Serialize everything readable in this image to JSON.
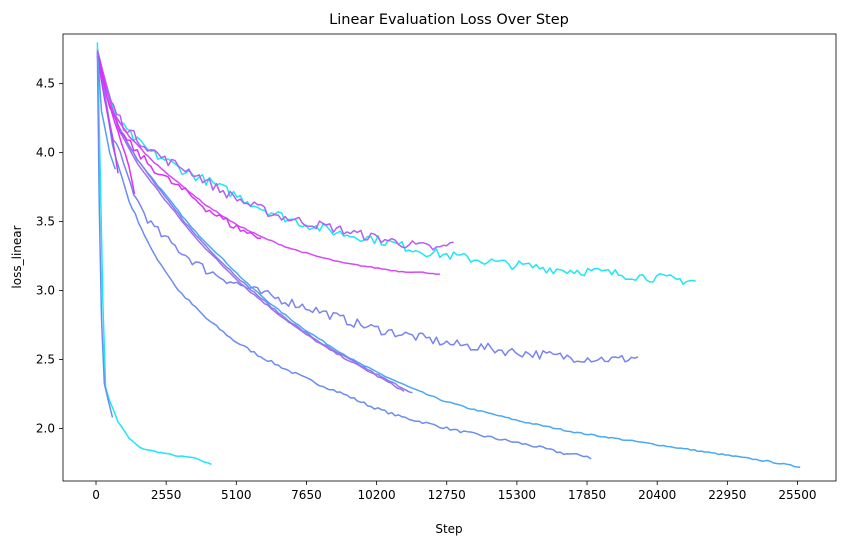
{
  "chart_data": {
    "type": "line",
    "title": "Linear Evaluation Loss Over Step",
    "xlabel": "Step",
    "ylabel": "loss_linear",
    "xlim": [
      -1200,
      26900
    ],
    "ylim": [
      1.62,
      4.86
    ],
    "xticks": [
      0,
      2550,
      5100,
      7650,
      10200,
      12750,
      15300,
      17850,
      20400,
      22950,
      25500
    ],
    "yticks": [
      2.0,
      2.5,
      3.0,
      3.5,
      4.0,
      4.5
    ],
    "grid": false,
    "legend": "none",
    "series": [
      {
        "color": "#1ee6f5",
        "noise": 0.004,
        "points": [
          [
            50,
            4.8
          ],
          [
            150,
            3.9
          ],
          [
            250,
            2.9
          ],
          [
            350,
            2.3
          ],
          [
            500,
            2.2
          ],
          [
            800,
            2.05
          ],
          [
            1200,
            1.93
          ],
          [
            1600,
            1.86
          ],
          [
            2000,
            1.84
          ],
          [
            2500,
            1.82
          ],
          [
            3000,
            1.8
          ],
          [
            3500,
            1.79
          ],
          [
            4200,
            1.74
          ]
        ]
      },
      {
        "color": "#6a8ef0",
        "noise": 0.004,
        "points": [
          [
            50,
            4.72
          ],
          [
            120,
            3.6
          ],
          [
            200,
            2.8
          ],
          [
            300,
            2.33
          ],
          [
            450,
            2.2
          ],
          [
            600,
            2.08
          ]
        ]
      },
      {
        "color": "#6a8ef0",
        "noise": 0.01,
        "points": [
          [
            50,
            4.75
          ],
          [
            600,
            4.05
          ],
          [
            1200,
            3.65
          ],
          [
            2000,
            3.3
          ],
          [
            3000,
            3.0
          ],
          [
            4000,
            2.8
          ],
          [
            5000,
            2.64
          ],
          [
            6000,
            2.52
          ],
          [
            7000,
            2.42
          ],
          [
            8000,
            2.33
          ],
          [
            9000,
            2.25
          ],
          [
            10000,
            2.16
          ],
          [
            11000,
            2.09
          ],
          [
            12000,
            2.04
          ],
          [
            13000,
            1.99
          ],
          [
            14000,
            1.95
          ],
          [
            15000,
            1.91
          ],
          [
            16000,
            1.87
          ],
          [
            17000,
            1.82
          ],
          [
            17850,
            1.8
          ],
          [
            18000,
            1.78
          ]
        ]
      },
      {
        "color": "#4aa8f5",
        "noise": 0.005,
        "points": [
          [
            50,
            4.72
          ],
          [
            800,
            4.2
          ],
          [
            1500,
            3.95
          ],
          [
            2500,
            3.7
          ],
          [
            3500,
            3.45
          ],
          [
            4500,
            3.25
          ],
          [
            5500,
            3.05
          ],
          [
            6500,
            2.88
          ],
          [
            7500,
            2.73
          ],
          [
            8500,
            2.6
          ],
          [
            9500,
            2.48
          ],
          [
            10500,
            2.38
          ],
          [
            11500,
            2.29
          ],
          [
            12500,
            2.21
          ],
          [
            13500,
            2.15
          ],
          [
            14500,
            2.1
          ],
          [
            15500,
            2.05
          ],
          [
            16500,
            2.01
          ],
          [
            17500,
            1.97
          ],
          [
            18500,
            1.94
          ],
          [
            19500,
            1.91
          ],
          [
            20500,
            1.88
          ],
          [
            21500,
            1.85
          ],
          [
            22500,
            1.82
          ],
          [
            23500,
            1.79
          ],
          [
            24500,
            1.76
          ],
          [
            25600,
            1.72
          ]
        ]
      },
      {
        "color": "#8a7cf0",
        "noise": 0.006,
        "points": [
          [
            50,
            4.7
          ],
          [
            800,
            4.2
          ],
          [
            1500,
            3.95
          ],
          [
            2500,
            3.68
          ],
          [
            3500,
            3.43
          ],
          [
            4500,
            3.22
          ],
          [
            5500,
            3.03
          ],
          [
            6500,
            2.86
          ],
          [
            7500,
            2.71
          ],
          [
            8500,
            2.58
          ],
          [
            9500,
            2.47
          ],
          [
            10500,
            2.36
          ],
          [
            11500,
            2.26
          ]
        ]
      },
      {
        "color": "#a070f2",
        "noise": 0.006,
        "points": [
          [
            50,
            4.68
          ],
          [
            800,
            4.18
          ],
          [
            1500,
            3.92
          ],
          [
            2500,
            3.66
          ],
          [
            3500,
            3.41
          ],
          [
            4500,
            3.2
          ],
          [
            5500,
            3.01
          ],
          [
            6500,
            2.85
          ],
          [
            7500,
            2.7
          ],
          [
            8500,
            2.57
          ],
          [
            9500,
            2.46
          ],
          [
            10500,
            2.35
          ],
          [
            11200,
            2.27
          ]
        ]
      },
      {
        "color": "#7a84f0",
        "noise": 0.035,
        "points": [
          [
            50,
            4.72
          ],
          [
            500,
            4.2
          ],
          [
            1000,
            3.9
          ],
          [
            1500,
            3.65
          ],
          [
            2000,
            3.48
          ],
          [
            2500,
            3.38
          ],
          [
            3000,
            3.3
          ],
          [
            3500,
            3.22
          ],
          [
            4000,
            3.15
          ],
          [
            5000,
            3.06
          ],
          [
            6000,
            2.98
          ],
          [
            7000,
            2.92
          ],
          [
            8000,
            2.86
          ],
          [
            9000,
            2.79
          ],
          [
            10000,
            2.73
          ],
          [
            11000,
            2.69
          ],
          [
            12000,
            2.65
          ],
          [
            13000,
            2.61
          ],
          [
            14000,
            2.59
          ],
          [
            15000,
            2.56
          ],
          [
            16000,
            2.54
          ],
          [
            17000,
            2.52
          ],
          [
            18000,
            2.51
          ],
          [
            19000,
            2.5
          ],
          [
            19700,
            2.52
          ]
        ]
      },
      {
        "color": "#1ee6f5",
        "noise": 0.035,
        "points": [
          [
            50,
            4.75
          ],
          [
            500,
            4.35
          ],
          [
            1000,
            4.18
          ],
          [
            1500,
            4.08
          ],
          [
            2000,
            4.0
          ],
          [
            2500,
            3.95
          ],
          [
            3000,
            3.89
          ],
          [
            3500,
            3.84
          ],
          [
            4000,
            3.8
          ],
          [
            5000,
            3.7
          ],
          [
            6000,
            3.6
          ],
          [
            7000,
            3.52
          ],
          [
            8000,
            3.46
          ],
          [
            9000,
            3.41
          ],
          [
            10000,
            3.38
          ],
          [
            11000,
            3.33
          ],
          [
            12000,
            3.28
          ],
          [
            13000,
            3.25
          ],
          [
            14000,
            3.22
          ],
          [
            15000,
            3.19
          ],
          [
            16000,
            3.17
          ],
          [
            17000,
            3.15
          ],
          [
            18000,
            3.14
          ],
          [
            19000,
            3.12
          ],
          [
            20000,
            3.1
          ],
          [
            21000,
            3.08
          ],
          [
            21800,
            3.07
          ]
        ]
      },
      {
        "color": "#b35ef5",
        "noise": 0.035,
        "points": [
          [
            50,
            4.74
          ],
          [
            500,
            4.38
          ],
          [
            1000,
            4.2
          ],
          [
            1500,
            4.1
          ],
          [
            2500,
            3.95
          ],
          [
            3500,
            3.86
          ],
          [
            4500,
            3.73
          ],
          [
            5500,
            3.63
          ],
          [
            6500,
            3.55
          ],
          [
            7500,
            3.5
          ],
          [
            8500,
            3.46
          ],
          [
            9500,
            3.41
          ],
          [
            10500,
            3.37
          ],
          [
            11500,
            3.33
          ],
          [
            12500,
            3.3
          ],
          [
            13000,
            3.35
          ]
        ]
      },
      {
        "color": "#d44af5",
        "noise": 0.004,
        "points": [
          [
            50,
            4.74
          ],
          [
            600,
            4.3
          ],
          [
            1200,
            4.12
          ],
          [
            2000,
            3.95
          ],
          [
            3000,
            3.78
          ],
          [
            4000,
            3.62
          ],
          [
            5000,
            3.49
          ],
          [
            6000,
            3.39
          ],
          [
            7000,
            3.31
          ],
          [
            8000,
            3.25
          ],
          [
            9000,
            3.2
          ],
          [
            10000,
            3.17
          ],
          [
            11000,
            3.14
          ],
          [
            12000,
            3.13
          ],
          [
            12500,
            3.12
          ]
        ]
      },
      {
        "color": "#d735f5",
        "noise": 0.03,
        "points": [
          [
            50,
            4.73
          ],
          [
            500,
            4.3
          ],
          [
            1000,
            4.12
          ],
          [
            1500,
            4.0
          ],
          [
            2000,
            3.9
          ],
          [
            2500,
            3.82
          ],
          [
            3000,
            3.75
          ],
          [
            3500,
            3.68
          ],
          [
            4000,
            3.6
          ],
          [
            4500,
            3.53
          ],
          [
            5000,
            3.47
          ],
          [
            5500,
            3.42
          ],
          [
            6000,
            3.38
          ]
        ]
      },
      {
        "color": "#e030f5",
        "noise": 0.006,
        "points": [
          [
            50,
            4.72
          ],
          [
            400,
            4.4
          ],
          [
            800,
            4.15
          ],
          [
            1200,
            3.9
          ],
          [
            1400,
            3.7
          ]
        ]
      },
      {
        "color": "#c040f5",
        "noise": 0.005,
        "points": [
          [
            50,
            4.7
          ],
          [
            300,
            4.4
          ],
          [
            600,
            4.1
          ],
          [
            800,
            3.85
          ]
        ]
      },
      {
        "color": "#5a9cf2",
        "noise": 0.004,
        "points": [
          [
            50,
            4.73
          ],
          [
            200,
            4.3
          ],
          [
            500,
            4.0
          ],
          [
            700,
            3.88
          ]
        ]
      }
    ]
  }
}
